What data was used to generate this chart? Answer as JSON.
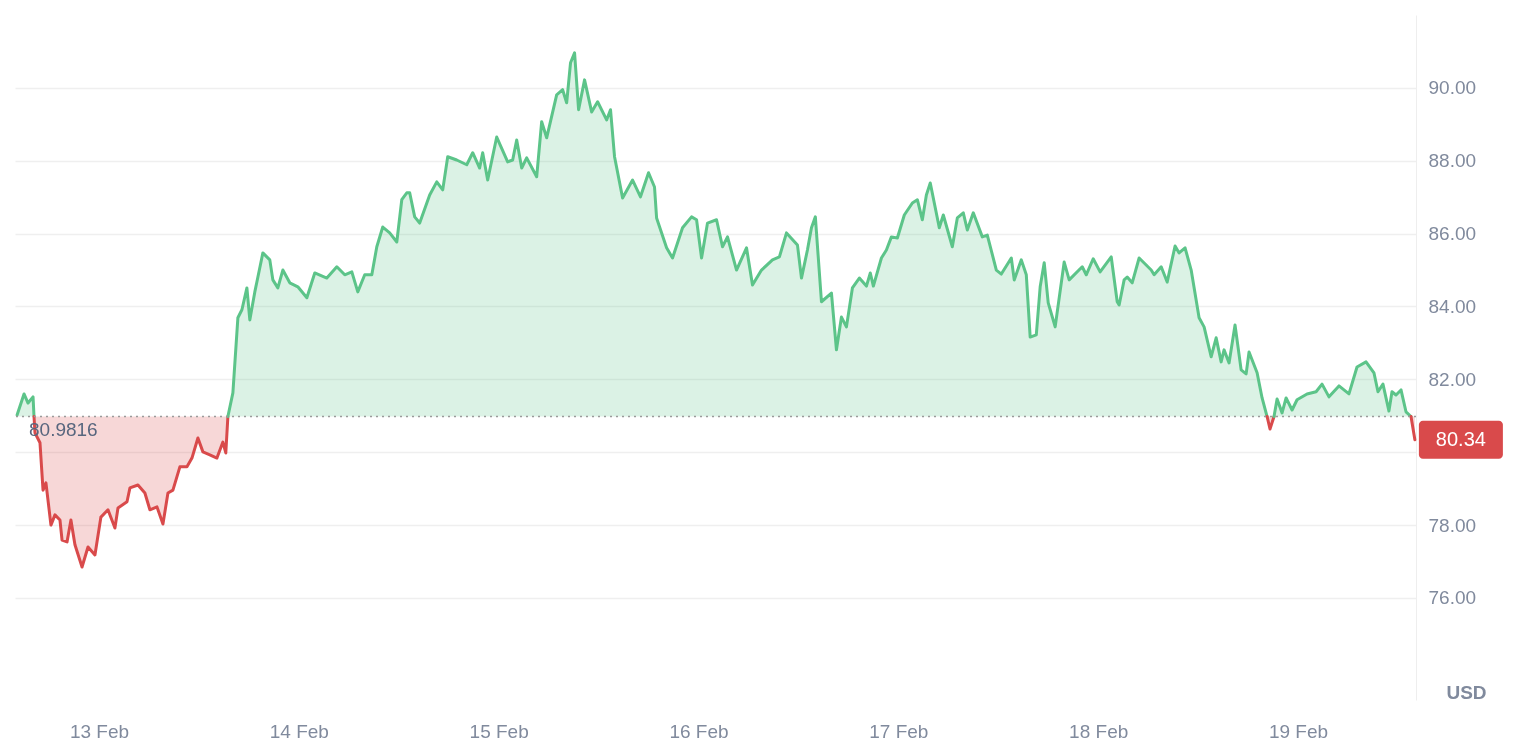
{
  "chart_data": {
    "type": "area",
    "ylabel": "USD",
    "xlim": [
      "--02-12T13:55",
      "--02-19T14:10"
    ],
    "xticks": [
      {
        "value": "--02-13",
        "label": "13 Feb"
      },
      {
        "value": "--02-14",
        "label": "14 Feb"
      },
      {
        "value": "--02-15",
        "label": "15 Feb"
      },
      {
        "value": "--02-16",
        "label": "16 Feb"
      },
      {
        "value": "--02-17",
        "label": "17 Feb"
      },
      {
        "value": "--02-18",
        "label": "18 Feb"
      },
      {
        "value": "--02-19",
        "label": "19 Feb"
      }
    ],
    "ylim": [
      73.2,
      92.0
    ],
    "yticks": [
      {
        "value": 76,
        "label": "76.00"
      },
      {
        "value": 78,
        "label": "78.00"
      },
      {
        "value": 80,
        "label": null
      },
      {
        "value": 82,
        "label": "82.00"
      },
      {
        "value": 84,
        "label": "84.00"
      },
      {
        "value": 86,
        "label": "86.00"
      },
      {
        "value": 88,
        "label": "88.00"
      },
      {
        "value": 90,
        "label": "90.00"
      }
    ],
    "grid": "y",
    "ref_lines": [
      {
        "axis": "y",
        "value": 80.9816,
        "label": "80.9816",
        "line_style": "dotted",
        "color": "#9a9a9a"
      }
    ],
    "annotations": [
      {
        "text": "80.34",
        "x": "--02-19T14:02",
        "y": 80.34
      }
    ],
    "series": [
      {
        "color": "#5cc489",
        "x": [
          "--02-12T14:10",
          "--02-12T15:00",
          "--02-12T15:29",
          "--02-12T16:05",
          "--02-12T16:12"
        ],
        "values": [
          81.02,
          81.6,
          81.35,
          81.52,
          80.98
        ]
      },
      {
        "type": "line",
        "color": "#d94a4b",
        "x": [
          "--02-12T16:12",
          "--02-12T16:19",
          "--02-12T16:55",
          "--02-12T17:17",
          "--02-12T17:38",
          "--02-12T18:14",
          "--02-12T18:43",
          "--02-12T19:19",
          "--02-12T19:34",
          "--02-12T20:10",
          "--02-12T20:38",
          "--02-12T21:07",
          "--02-12T21:58",
          "--02-12T22:41",
          "--02-12T23:31",
          "--02-13T00:14",
          "--02-13T01:05",
          "--02-13T01:55",
          "--02-13T02:17",
          "--02-13T03:22",
          "--02-13T03:43",
          "--02-13T04:41",
          "--02-13T05:31",
          "--02-13T06:07",
          "--02-13T06:58",
          "--02-13T07:41",
          "--02-13T08:17",
          "--02-13T08:53",
          "--02-13T09:43",
          "--02-13T10:34",
          "--02-13T11:10",
          "--02-13T11:53",
          "--02-13T12:29",
          "--02-13T13:19",
          "--02-13T14:10",
          "--02-13T14:53",
          "--02-13T15:14",
          "--02-13T15:29"
        ],
        "values": [
          80.98,
          80.53,
          80.26,
          78.96,
          79.16,
          78.0,
          78.28,
          78.14,
          77.59,
          77.54,
          78.14,
          77.46,
          76.85,
          77.4,
          77.18,
          78.22,
          78.42,
          77.92,
          78.47,
          78.64,
          79.02,
          79.1,
          78.88,
          78.42,
          78.5,
          78.03,
          78.88,
          78.96,
          79.6,
          79.6,
          79.84,
          80.39,
          80.01,
          79.93,
          79.84,
          80.28,
          79.98,
          80.98
        ]
      },
      {
        "color": "#5cc489",
        "x": [
          "--02-13T15:29",
          "--02-13T16:05",
          "--02-13T16:41",
          "--02-13T17:10",
          "--02-13T17:46",
          "--02-13T18:07",
          "--02-13T18:43",
          "--02-13T19:41",
          "--02-13T20:31",
          "--02-13T20:53",
          "--02-13T21:29",
          "--02-13T22:05",
          "--02-13T22:55",
          "--02-13T23:53",
          "--02-14T00:58",
          "--02-14T01:55",
          "--02-14T03:22",
          "--02-14T04:34",
          "--02-14T05:31",
          "--02-14T06:22",
          "--02-14T07:05",
          "--02-14T07:55",
          "--02-14T08:46",
          "--02-14T09:22",
          "--02-14T10:05",
          "--02-14T10:55",
          "--02-14T11:46",
          "--02-14T12:22",
          "--02-14T12:58",
          "--02-14T13:19",
          "--02-14T13:55",
          "--02-14T14:31",
          "--02-14T15:43",
          "--02-14T16:34",
          "--02-14T17:17",
          "--02-14T17:53",
          "--02-14T18:58",
          "--02-14T20:10",
          "--02-14T20:53",
          "--02-14T21:43",
          "--02-14T22:05",
          "--02-14T22:41",
          "--02-14T23:46",
          "--02-15T01:05",
          "--02-15T01:41",
          "--02-15T02:10",
          "--02-15T02:46",
          "--02-15T03:22",
          "--02-15T04:34",
          "--02-15T05:10",
          "--02-15T05:46",
          "--02-15T06:58",
          "--02-15T07:41",
          "--02-15T08:10",
          "--02-15T08:38",
          "--02-15T09:07",
          "--02-15T09:36",
          "--02-15T10:19",
          "--02-15T11:10",
          "--02-15T11:53",
          "--02-15T12:58",
          "--02-15T13:26",
          "--02-15T13:55",
          "--02-15T14:53",
          "--02-15T16:05",
          "--02-15T17:02",
          "--02-15T18:00",
          "--02-15T18:43",
          "--02-15T18:58",
          "--02-15T20:10",
          "--02-15T20:53",
          "--02-15T22:05",
          "--02-15T23:10",
          "--02-15T23:46",
          "--02-16T00:22",
          "--02-16T01:05",
          "--02-16T02:10",
          "--02-16T02:53",
          "--02-16T03:29",
          "--02-16T04:34",
          "--02-16T05:46",
          "--02-16T06:29",
          "--02-16T07:34",
          "--02-16T08:53",
          "--02-16T09:43",
          "--02-16T10:34",
          "--02-16T11:53",
          "--02-16T12:22",
          "--02-16T13:05",
          "--02-16T13:34",
          "--02-16T14:02",
          "--02-16T14:46",
          "--02-16T15:58",
          "--02-16T16:34",
          "--02-16T17:10",
          "--02-16T17:46",
          "--02-16T18:29",
          "--02-16T19:19",
          "--02-16T20:10",
          "--02-16T20:38",
          "--02-16T21:00",
          "--02-16T21:58",
          "--02-16T22:34",
          "--02-16T23:10",
          "--02-16T23:53",
          "--02-17T00:43",
          "--02-17T01:41",
          "--02-17T02:17",
          "--02-17T02:53",
          "--02-17T03:22",
          "--02-17T03:50",
          "--02-17T04:55",
          "--02-17T05:24",
          "--02-17T06:29",
          "--02-17T07:05",
          "--02-17T07:48",
          "--02-17T08:17",
          "--02-17T09:00",
          "--02-17T10:05",
          "--02-17T10:41",
          "--02-17T11:46",
          "--02-17T12:22",
          "--02-17T13:34",
          "--02-17T13:55",
          "--02-17T14:46",
          "--02-17T15:22",
          "--02-17T15:50",
          "--02-17T16:34",
          "--02-17T17:02",
          "--02-17T17:31",
          "--02-17T18:00",
          "--02-17T18:50",
          "--02-17T19:55",
          "--02-17T20:31",
          "--02-17T22:05",
          "--02-17T22:34",
          "--02-17T23:24",
          "--02-18T00:14",
          "--02-18T01:34",
          "--02-18T02:17",
          "--02-18T02:31",
          "--02-18T03:07",
          "--02-18T03:29",
          "--02-18T04:05",
          "--02-18T04:55",
          "--02-18T06:22",
          "--02-18T06:43",
          "--02-18T07:34",
          "--02-18T08:17",
          "--02-18T09:14",
          "--02-18T09:43",
          "--02-18T10:26",
          "--02-18T11:10",
          "--02-18T12:07",
          "--02-18T12:43",
          "--02-18T13:34",
          "--02-18T14:10",
          "--02-18T14:46",
          "--02-18T15:07",
          "--02-18T15:43",
          "--02-18T16:26",
          "--02-18T17:10",
          "--02-18T17:46",
          "--02-18T18:07",
          "--02-18T19:05",
          "--02-18T19:41",
          "--02-18T20:17"
        ],
        "values": [
          80.98,
          81.63,
          83.69,
          83.91,
          84.51,
          83.63,
          84.4,
          85.47,
          85.28,
          84.73,
          84.51,
          85.0,
          84.65,
          84.54,
          84.24,
          84.92,
          84.78,
          85.09,
          84.87,
          84.95,
          84.4,
          84.87,
          84.87,
          85.64,
          86.18,
          86.02,
          85.77,
          86.93,
          87.12,
          87.12,
          86.46,
          86.29,
          87.06,
          87.42,
          87.2,
          88.11,
          88.02,
          87.89,
          88.22,
          87.8,
          88.22,
          87.47,
          88.65,
          87.97,
          88.02,
          88.57,
          87.8,
          88.08,
          87.56,
          89.07,
          88.63,
          89.81,
          89.95,
          89.59,
          90.69,
          90.96,
          89.4,
          90.22,
          89.34,
          89.62,
          89.12,
          89.4,
          88.11,
          86.98,
          87.47,
          87.01,
          87.67,
          87.28,
          86.43,
          85.61,
          85.33,
          86.16,
          86.46,
          86.38,
          85.33,
          86.29,
          86.38,
          85.64,
          85.91,
          85.0,
          85.61,
          84.59,
          85.0,
          85.28,
          85.36,
          86.02,
          85.69,
          84.78,
          85.55,
          86.16,
          86.46,
          84.13,
          84.37,
          82.81,
          83.71,
          83.44,
          84.51,
          84.78,
          84.56,
          84.92,
          84.56,
          85.33,
          85.55,
          85.91,
          85.88,
          86.51,
          86.84,
          86.93,
          86.38,
          87.06,
          87.39,
          86.16,
          86.51,
          85.64,
          86.43,
          86.57,
          86.1,
          86.57,
          85.91,
          85.96,
          85.0,
          84.89,
          85.33,
          84.73,
          85.28,
          84.87,
          83.16,
          83.22,
          84.54,
          85.2,
          84.1,
          83.44,
          85.22,
          84.73,
          85.09,
          84.87,
          85.31,
          84.95,
          85.36,
          84.13,
          84.04,
          84.73,
          84.81,
          84.65,
          85.33,
          85.0,
          84.87,
          85.09,
          84.67,
          85.66,
          85.47,
          85.61,
          85.0,
          83.69,
          83.44,
          82.62,
          83.14,
          82.48,
          82.81,
          82.45,
          83.49,
          82.26,
          82.15,
          82.75,
          82.18,
          81.49,
          80.98
        ]
      },
      {
        "type": "line",
        "color": "#d94a4b",
        "x": [
          "--02-18T20:17",
          "--02-18T20:38",
          "--02-18T21:07"
        ],
        "values": [
          80.98,
          80.64,
          80.98
        ]
      },
      {
        "color": "#5cc489",
        "x": [
          "--02-18T21:07",
          "--02-18T21:29",
          "--02-18T22:05",
          "--02-18T22:34",
          "--02-18T23:17",
          "--02-18T23:53",
          "--02-19T01:05",
          "--02-19T02:10",
          "--02-19T02:53",
          "--02-19T03:43",
          "--02-19T04:55",
          "--02-19T06:07",
          "--02-19T07:05",
          "--02-19T08:10",
          "--02-19T09:07",
          "--02-19T09:36",
          "--02-19T10:12",
          "--02-19T10:55",
          "--02-19T11:17",
          "--02-19T11:46",
          "--02-19T12:22",
          "--02-19T12:58",
          "--02-19T13:34"
        ],
        "values": [
          80.98,
          81.46,
          81.08,
          81.49,
          81.16,
          81.44,
          81.6,
          81.66,
          81.87,
          81.52,
          81.82,
          81.6,
          82.34,
          82.48,
          82.18,
          81.66,
          81.87,
          81.13,
          81.66,
          81.57,
          81.71,
          81.11,
          80.98
        ]
      },
      {
        "type": "line",
        "color": "#d94a4b",
        "x": [
          "--02-19T13:34",
          "--02-19T14:02"
        ],
        "values": [
          80.98,
          80.34
        ]
      }
    ]
  }
}
